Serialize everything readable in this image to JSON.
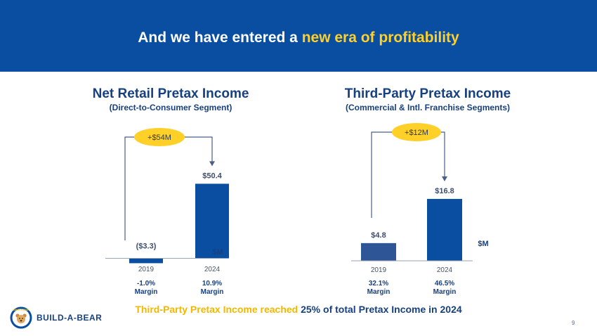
{
  "header": {
    "title_start": "And we have entered a ",
    "title_highlight": "new era of profitability"
  },
  "chart_data": [
    {
      "type": "bar",
      "title": "Net Retail Pretax Income",
      "subtitle": "(Direct-to-Consumer Segment)",
      "categories": [
        "2019",
        "2024"
      ],
      "values": [
        -3.3,
        50.4
      ],
      "value_labels": [
        "($3.3)",
        "$50.4"
      ],
      "margin_values": [
        "-1.0%",
        "10.9%"
      ],
      "margin_label": "Margin",
      "unit_label": "$M",
      "change_label": "+$54M",
      "bar_colors": [
        "#0a4ea2",
        "#0a4ea2"
      ]
    },
    {
      "type": "bar",
      "title": "Third-Party Pretax Income",
      "subtitle": "(Commercial & Intl. Franchise Segments)",
      "categories": [
        "2019",
        "2024"
      ],
      "values": [
        4.8,
        16.8
      ],
      "value_labels": [
        "$4.8",
        "$16.8"
      ],
      "margin_values": [
        "32.1%",
        "46.5%"
      ],
      "margin_label": "Margin",
      "unit_label": "$M",
      "change_label": "+$12M",
      "bar_colors": [
        "#2e5596",
        "#0a4ea2"
      ]
    }
  ],
  "footer": {
    "text_highlight": "Third-Party Pretax Income reached",
    "text_rest": " 25% of total Pretax Income in 2024"
  },
  "brand": {
    "name": "BUILD-A-BEAR",
    "logo_text": "BUILD·A·BEAR"
  },
  "page": {
    "number": "9"
  },
  "colors": {
    "banner": "#0a4ea2",
    "accent_yellow": "#ffd028",
    "navy": "#17407f"
  }
}
